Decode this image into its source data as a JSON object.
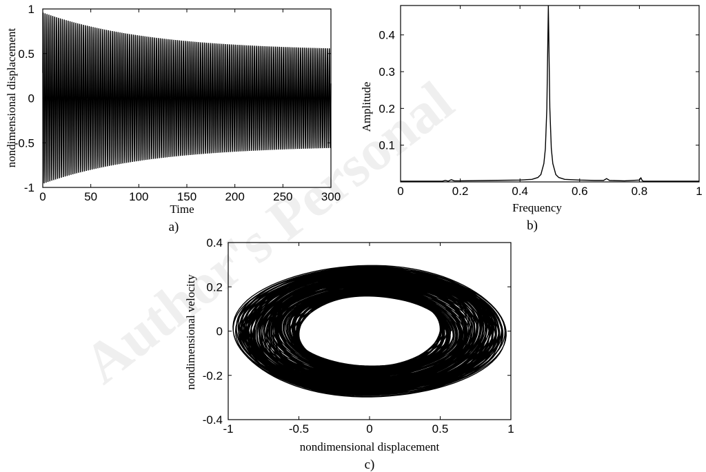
{
  "watermark": "Author's Personal",
  "chart_data": [
    {
      "id": "a",
      "type": "line",
      "caption": "a)",
      "xlabel": "Time",
      "ylabel": "nondimensional displacement",
      "xlim": [
        0,
        300
      ],
      "ylim": [
        -1,
        1
      ],
      "xticks": [
        0,
        50,
        100,
        150,
        200,
        250,
        300
      ],
      "yticks": [
        -1,
        -0.5,
        0,
        0.5,
        1
      ],
      "xtick_labels": [
        "0",
        "50",
        "100",
        "150",
        "200",
        "250",
        "300"
      ],
      "ytick_labels": [
        "-1",
        "-0.5",
        "0",
        "0.5",
        "1"
      ],
      "grid": false,
      "signal": {
        "description_free": true,
        "initial_amplitude": 0.96,
        "final_amplitude": 0.53,
        "period": 2.0,
        "duration": 300
      }
    },
    {
      "id": "b",
      "type": "line",
      "caption": "b)",
      "xlabel": "Frequency",
      "ylabel": "Amplitude",
      "xlim": [
        0,
        1
      ],
      "ylim": [
        0,
        0.48
      ],
      "xticks": [
        0,
        0.2,
        0.4,
        0.6,
        0.8,
        1
      ],
      "yticks": [
        0.1,
        0.2,
        0.3,
        0.4
      ],
      "xtick_labels": [
        "0",
        "0.2",
        "0.4",
        "0.6",
        "0.8",
        "1"
      ],
      "ytick_labels": [
        "0.1",
        "0.2",
        "0.3",
        "0.4"
      ],
      "grid": false,
      "x": [
        0,
        0.1,
        0.14,
        0.15,
        0.16,
        0.17,
        0.18,
        0.2,
        0.3,
        0.4,
        0.44,
        0.46,
        0.47,
        0.48,
        0.485,
        0.49,
        0.495,
        0.5,
        0.505,
        0.51,
        0.52,
        0.53,
        0.55,
        0.6,
        0.65,
        0.68,
        0.69,
        0.7,
        0.75,
        0.8,
        0.805,
        0.81,
        0.815,
        0.82,
        0.9,
        1.0
      ],
      "y": [
        0.002,
        0.002,
        0.002,
        0.004,
        0.002,
        0.006,
        0.003,
        0.003,
        0.004,
        0.005,
        0.007,
        0.012,
        0.02,
        0.05,
        0.09,
        0.2,
        0.48,
        0.2,
        0.09,
        0.05,
        0.02,
        0.012,
        0.007,
        0.005,
        0.004,
        0.004,
        0.009,
        0.004,
        0.003,
        0.005,
        0.011,
        0.003,
        0.002,
        0.002,
        0.002,
        0.002
      ]
    },
    {
      "id": "c",
      "type": "line",
      "caption": "c)",
      "xlabel": "nondimensional displacement",
      "ylabel": "nondimensional velocity",
      "xlim": [
        -1,
        1
      ],
      "ylim": [
        -0.4,
        0.4
      ],
      "xticks": [
        -1,
        -0.5,
        0,
        0.5,
        1
      ],
      "yticks": [
        -0.4,
        -0.2,
        0,
        0.2,
        0.4
      ],
      "xtick_labels": [
        "-1",
        "-0.5",
        "0",
        "0.5",
        "1"
      ],
      "ytick_labels": [
        "-0.4",
        "-0.2",
        "0",
        "0.2",
        "0.4"
      ],
      "grid": false,
      "phase_portrait": {
        "outer_amplitude": 0.96,
        "inner_amplitude": 0.51,
        "velocity_ratio": 0.31
      }
    }
  ]
}
